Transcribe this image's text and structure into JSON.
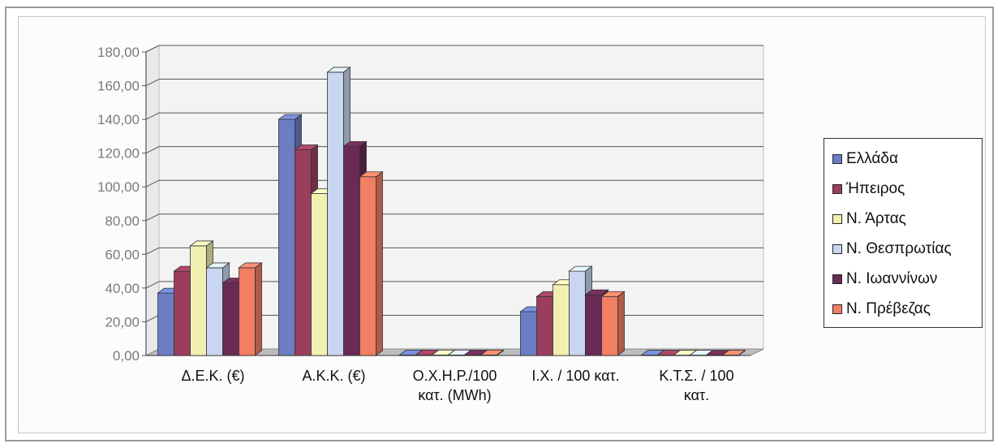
{
  "chart_data": {
    "type": "bar",
    "categories": [
      "Δ.Ε.Κ. (€)",
      "Α.Κ.Κ. (€)",
      "Ο.Χ.Η.Ρ./100 κατ. (MWh)",
      "Ι.Χ. / 100 κατ.",
      "Κ.Τ.Σ. / 100 κατ."
    ],
    "category_display": [
      "Δ.Ε.Κ. (€)",
      "Α.Κ.Κ. (€)",
      "Ο.Χ.Η.Ρ./100\nκατ. (MWh)",
      "Ι.Χ. / 100 κατ.",
      "Κ.Τ.Σ. / 100\nκατ."
    ],
    "series": [
      {
        "name": "Ελλάδα",
        "values": [
          37,
          140,
          0.3,
          26,
          0.2
        ],
        "color": "#6b7ec4"
      },
      {
        "name": "Ήπειρος",
        "values": [
          50,
          122,
          0.3,
          35,
          0.2
        ],
        "color": "#9b3e5e"
      },
      {
        "name": "Ν. Άρτας",
        "values": [
          65,
          96,
          0.3,
          42,
          0.2
        ],
        "color": "#f2f0b0"
      },
      {
        "name": "Ν. Θεσπρωτίας",
        "values": [
          52,
          168,
          0.3,
          50,
          0.2
        ],
        "color": "#c8d6f2"
      },
      {
        "name": "Ν. Ιωαννίνων",
        "values": [
          43,
          124,
          0.3,
          36,
          0.2
        ],
        "color": "#6a2a55"
      },
      {
        "name": "Ν. Πρέβεζας",
        "values": [
          52,
          106,
          0.3,
          35,
          0.2
        ],
        "color": "#f27e63"
      }
    ],
    "y_ticks": [
      "0,00",
      "20,00",
      "40,00",
      "60,00",
      "80,00",
      "100,00",
      "120,00",
      "140,00",
      "160,00",
      "180,00"
    ],
    "ylim": [
      0,
      180
    ],
    "grid": true,
    "legend_position": "right",
    "title": "",
    "xlabel": "",
    "ylabel": ""
  }
}
